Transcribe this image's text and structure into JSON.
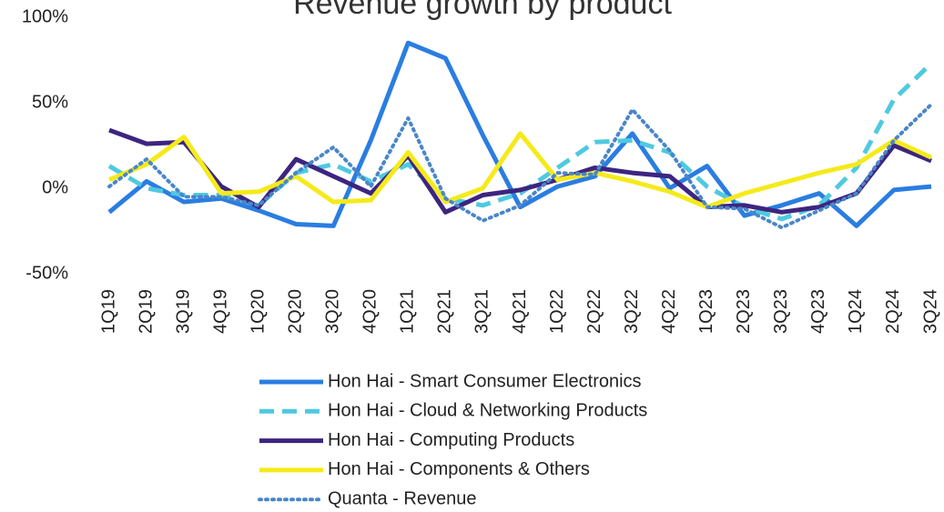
{
  "chart_data": {
    "type": "line",
    "title": "Revenue growth by product",
    "categories": [
      "1Q19",
      "2Q19",
      "3Q19",
      "4Q19",
      "1Q20",
      "2Q20",
      "3Q20",
      "4Q20",
      "1Q21",
      "2Q21",
      "3Q21",
      "4Q21",
      "1Q22",
      "2Q22",
      "3Q22",
      "4Q22",
      "1Q23",
      "2Q23",
      "3Q23",
      "4Q23",
      "1Q24",
      "2Q24",
      "3Q24"
    ],
    "ylim": [
      -50,
      100
    ],
    "yticks": [
      {
        "value": -50,
        "label": "-50%"
      },
      {
        "value": 0,
        "label": "0%"
      },
      {
        "value": 50,
        "label": "50%"
      },
      {
        "value": 100,
        "label": "100%"
      }
    ],
    "grid": false,
    "legend": "bottom",
    "series": [
      {
        "name": "Hon Hai - Smart Consumer Electronics",
        "color": "#2a7de1",
        "style": "solid",
        "values": [
          -14,
          4,
          -8,
          -6,
          -13,
          -21,
          -22,
          28,
          85,
          76,
          31,
          -11,
          1,
          7,
          32,
          0,
          13,
          -16,
          -10,
          -3,
          -22,
          -1,
          1
        ]
      },
      {
        "name": "Hon Hai - Cloud & Networking Products",
        "color": "#4fc9e0",
        "style": "dashed",
        "values": [
          13,
          0,
          -4,
          -4,
          -10,
          9,
          14,
          4,
          14,
          -6,
          -10,
          -3,
          12,
          27,
          28,
          21,
          1,
          -11,
          -18,
          -10,
          12,
          52,
          73
        ]
      },
      {
        "name": "Hon Hai - Computing Products",
        "color": "#3d2580",
        "style": "solid",
        "values": [
          34,
          26,
          27,
          1,
          -11,
          17,
          7,
          -3,
          19,
          -14,
          -4,
          -1,
          5,
          12,
          9,
          7,
          -11,
          -10,
          -14,
          -11,
          -3,
          25,
          16
        ]
      },
      {
        "name": "Hon Hai - Components & Others",
        "color": "#f5ea1a",
        "style": "solid",
        "values": [
          5,
          14,
          30,
          -3,
          -2,
          7,
          -8,
          -7,
          21,
          -8,
          0,
          32,
          5,
          9,
          4,
          -2,
          -11,
          -3,
          3,
          9,
          14,
          28,
          18
        ]
      },
      {
        "name": "Quanta - Revenue",
        "color": "#4a86c8",
        "style": "dotted",
        "values": [
          1,
          17,
          -5,
          -5,
          -10,
          9,
          24,
          1,
          41,
          -6,
          -19,
          -10,
          9,
          8,
          46,
          22,
          -11,
          -12,
          -23,
          -13,
          -3,
          28,
          49
        ]
      }
    ]
  }
}
